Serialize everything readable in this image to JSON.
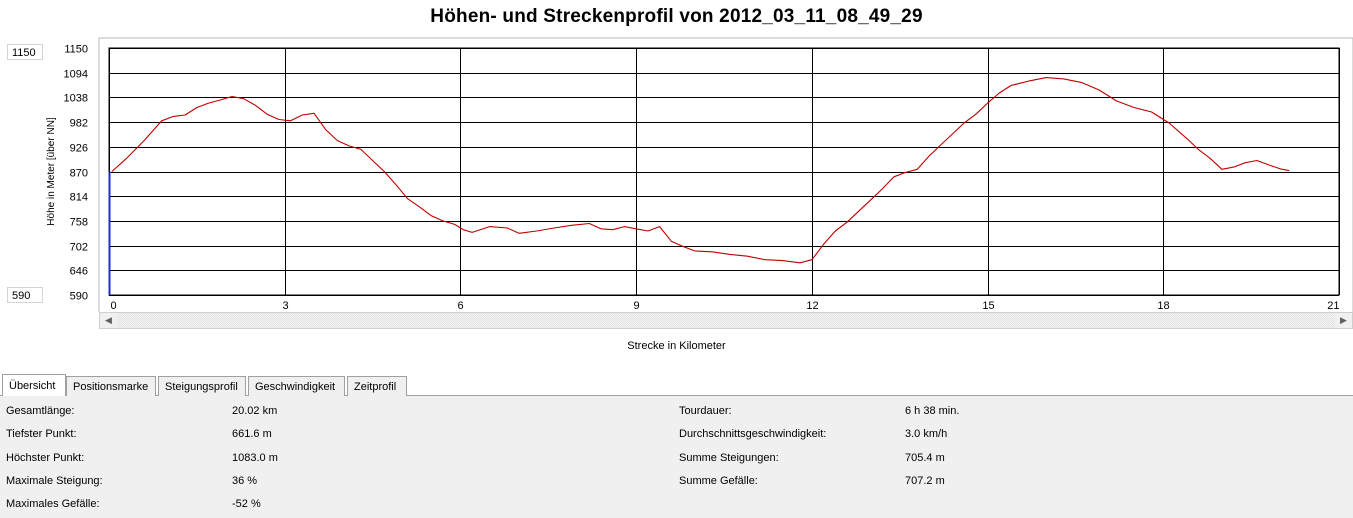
{
  "title": "Höhen- und Streckenprofil von 2012_03_11_08_49_29",
  "y_range_boxes": {
    "max": "1150",
    "min": "590"
  },
  "chart_data": {
    "type": "line",
    "title": "Höhen- und Streckenprofil von 2012_03_11_08_49_29",
    "xlabel": "Strecke in Kilometer",
    "ylabel": "Höhe in Meter [über NN]",
    "xlim": [
      0,
      21
    ],
    "ylim": [
      590,
      1150
    ],
    "x_ticks": [
      "0",
      "3",
      "6",
      "9",
      "12",
      "15",
      "18",
      "21"
    ],
    "y_ticks": [
      "1150",
      "1094",
      "1038",
      "982",
      "926",
      "870",
      "814",
      "758",
      "702",
      "646",
      "590"
    ],
    "grid": true,
    "line_color": "#c00000",
    "marker_color": "#1c2fc4",
    "marker_x": 0,
    "series": [
      {
        "x": [
          0.05,
          0.3,
          0.6,
          0.9,
          1.1,
          1.3,
          1.5,
          1.7,
          1.9,
          2.1,
          2.3,
          2.5,
          2.7,
          2.9,
          3.1,
          3.3,
          3.5,
          3.7,
          3.9,
          4.1,
          4.3,
          4.5,
          4.7,
          4.9,
          5.1,
          5.3,
          5.5,
          5.7,
          5.9,
          6.05,
          6.2,
          6.5,
          6.8,
          7.0,
          7.3,
          7.6,
          7.9,
          8.2,
          8.4,
          8.6,
          8.8,
          9.0,
          9.2,
          9.4,
          9.6,
          9.8,
          10.0,
          10.3,
          10.6,
          10.9,
          11.2,
          11.5,
          11.8,
          12.0,
          12.2,
          12.4,
          12.6,
          12.8,
          13.0,
          13.2,
          13.4,
          13.6,
          13.8,
          14.0,
          14.2,
          14.4,
          14.6,
          14.8,
          15.0,
          15.2,
          15.4,
          15.7,
          16.0,
          16.3,
          16.6,
          16.9,
          17.2,
          17.5,
          17.8,
          18.1,
          18.4,
          18.6,
          18.8,
          19.0,
          19.2,
          19.4,
          19.6,
          19.8,
          20.0,
          20.15
        ],
        "y": [
          870,
          900,
          940,
          985,
          995,
          998,
          1015,
          1025,
          1032,
          1040,
          1035,
          1020,
          1000,
          988,
          985,
          998,
          1002,
          965,
          940,
          928,
          920,
          895,
          870,
          840,
          808,
          790,
          770,
          758,
          750,
          738,
          732,
          745,
          742,
          730,
          735,
          742,
          748,
          752,
          740,
          738,
          745,
          740,
          735,
          745,
          712,
          700,
          690,
          688,
          682,
          678,
          670,
          668,
          663,
          670,
          705,
          735,
          755,
          780,
          805,
          830,
          858,
          868,
          875,
          905,
          930,
          955,
          980,
          1000,
          1025,
          1048,
          1065,
          1075,
          1083,
          1080,
          1072,
          1055,
          1030,
          1015,
          1005,
          980,
          945,
          920,
          900,
          875,
          880,
          890,
          895,
          885,
          876,
          872
        ]
      }
    ]
  },
  "tabs": [
    {
      "label": "Übersicht",
      "active": true
    },
    {
      "label": "Positionsmarke",
      "active": false
    },
    {
      "label": "Steigungsprofil",
      "active": false
    },
    {
      "label": "Geschwindigkeit",
      "active": false
    },
    {
      "label": "Zeitprofil",
      "active": false
    }
  ],
  "stats_left": [
    {
      "label": "Gesamtlänge:",
      "value": "20.02 km"
    },
    {
      "label": "Tiefster Punkt:",
      "value": "661.6 m"
    },
    {
      "label": "Höchster Punkt:",
      "value": "1083.0 m"
    },
    {
      "label": "Maximale Steigung:",
      "value": "36 %"
    },
    {
      "label": "Maximales Gefälle:",
      "value": "-52 %"
    }
  ],
  "stats_right": [
    {
      "label": "Tourdauer:",
      "value": "6 h 38 min."
    },
    {
      "label": "Durchschnittsgeschwindigkeit:",
      "value": "3.0 km/h"
    },
    {
      "label": "Summe Steigungen:",
      "value": "705.4 m"
    },
    {
      "label": "Summe Gefälle:",
      "value": "707.2 m"
    }
  ]
}
